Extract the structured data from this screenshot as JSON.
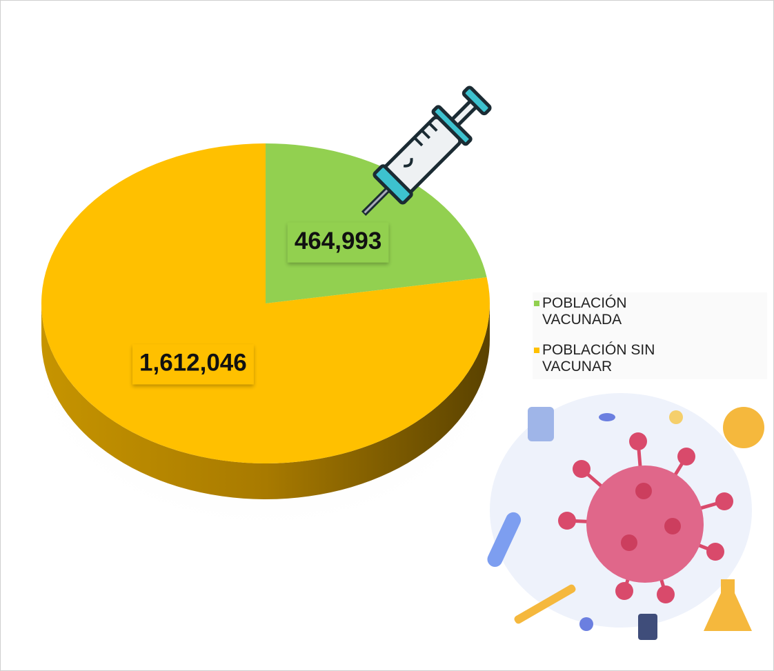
{
  "chart_data": {
    "type": "pie",
    "categories": [
      "POBLACIÓN VACUNADA",
      "POBLACIÓN SIN VACUNAR"
    ],
    "values": [
      464993,
      1612046
    ],
    "value_labels": [
      "464,993",
      "1,612,046"
    ],
    "colors": [
      "#92d050",
      "#ffc000"
    ],
    "legend": "right"
  }
}
